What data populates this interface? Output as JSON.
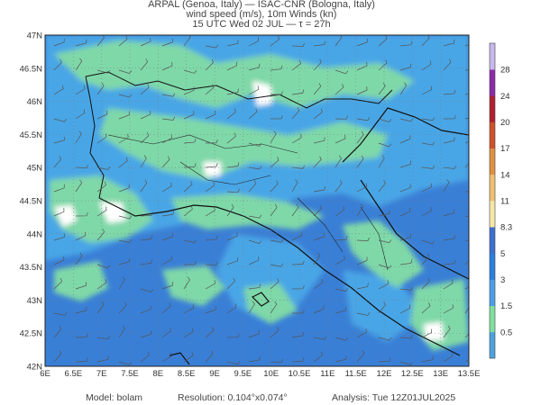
{
  "title": {
    "line1": "ARPAL (Genoa, Italy)  —  ISAC-CNR (Bologna, Italy)",
    "line2": "wind speed (m/s), 10m Winds (kn)",
    "line3": "15 UTC Wed 02 JUL  —  τ = 27h"
  },
  "axes": {
    "lat_labels": [
      "47N",
      "46.5N",
      "46N",
      "45.5N",
      "45N",
      "44.5N",
      "44N",
      "43.5N",
      "43N",
      "42.5N",
      "42N"
    ],
    "lon_labels": [
      "6E",
      "6.5E",
      "7E",
      "7.5E",
      "8E",
      "8.5E",
      "9E",
      "9.5E",
      "10E",
      "10.5E",
      "11E",
      "11.5E",
      "12E",
      "12.5E",
      "13E",
      "13.5E"
    ]
  },
  "colorbar": {
    "levels": [
      "0.5",
      "1.5",
      "3",
      "5",
      "8.3",
      "11",
      "14",
      "17",
      "20",
      "24",
      "28"
    ],
    "colors": [
      "#4aa3e0",
      "#7fe0a0",
      "#4a9fe8",
      "#2a7fe0",
      "#3b6fd0",
      "#f6e7a8",
      "#f0c070",
      "#e09040",
      "#d0502a",
      "#b02030",
      "#8a2aa8",
      "#c7b8ee"
    ]
  },
  "map_colors": {
    "sea": "#3a7fd6",
    "land_low": "#4aa3e0",
    "land_mid": "#7fd8a8",
    "land_calm": "#ffffff",
    "border": "#111111"
  },
  "footer": {
    "model_label": "Model:",
    "model_value": "bolam",
    "resolution_label": "Resolution:",
    "resolution_value": "0.104°x0.074°",
    "analysis_label": "Analysis:",
    "analysis_value": "Tue 12Z01JUL2025"
  }
}
